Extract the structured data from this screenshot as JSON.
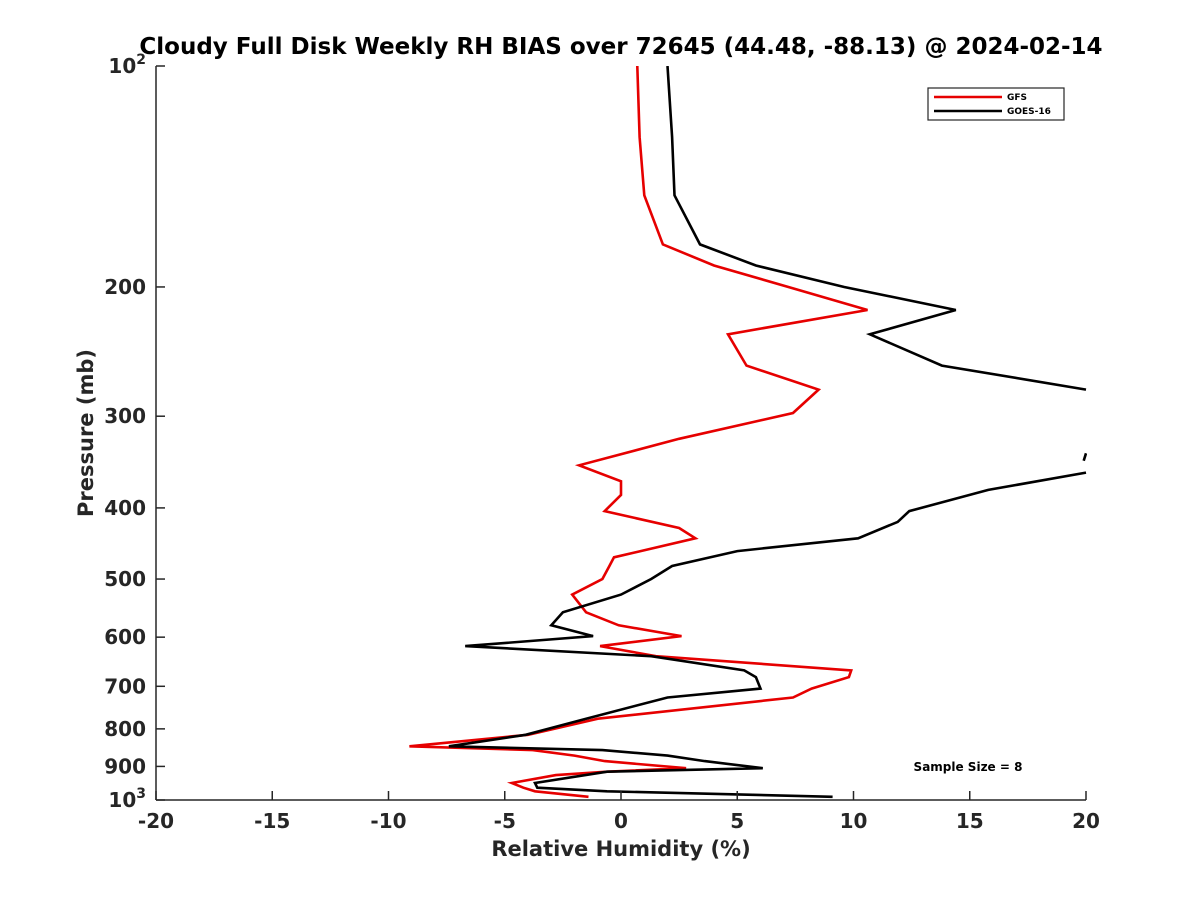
{
  "chart_data": {
    "type": "line",
    "title": "Cloudy Full Disk Weekly RH BIAS over 72645 (44.48, -88.13) @ 2024-02-14",
    "xlabel": "Relative Humidity (%)",
    "ylabel": "Pressure (mb)",
    "xlim": [
      -20,
      20
    ],
    "ylim": [
      100,
      1000
    ],
    "y_scale": "log",
    "y_reversed": true,
    "grid": false,
    "legend_position": "top-right",
    "x_ticks": [
      "-20",
      "-15",
      "-10",
      "-5",
      "0",
      "5",
      "10",
      "15",
      "20"
    ],
    "y_ticks": [
      {
        "value": 100,
        "base": "10",
        "exp": "2"
      },
      {
        "value": 200,
        "label": "200"
      },
      {
        "value": 300,
        "label": "300"
      },
      {
        "value": 400,
        "label": "400"
      },
      {
        "value": 500,
        "label": "500"
      },
      {
        "value": 600,
        "label": "600"
      },
      {
        "value": 700,
        "label": "700"
      },
      {
        "value": 800,
        "label": "800"
      },
      {
        "value": 900,
        "label": "900"
      },
      {
        "value": 1000,
        "base": "10",
        "exp": "3"
      }
    ],
    "annotation": "Sample Size = 8",
    "series": [
      {
        "name": "GFS",
        "color": "#e60000",
        "points": [
          [
            0.7,
            100
          ],
          [
            0.8,
            125
          ],
          [
            1.0,
            150
          ],
          [
            1.8,
            175
          ],
          [
            4.0,
            187
          ],
          [
            7.2,
            200
          ],
          [
            10.6,
            215
          ],
          [
            4.6,
            232
          ],
          [
            5.4,
            256
          ],
          [
            8.5,
            276
          ],
          [
            7.4,
            297
          ],
          [
            2.5,
            322
          ],
          [
            -1.8,
            350
          ],
          [
            0.0,
            368
          ],
          [
            0.0,
            384
          ],
          [
            -0.7,
            404
          ],
          [
            2.5,
            426
          ],
          [
            3.2,
            440
          ],
          [
            -0.3,
            467
          ],
          [
            -0.5,
            480
          ],
          [
            -0.8,
            500
          ],
          [
            -2.1,
            525
          ],
          [
            -1.5,
            555
          ],
          [
            -0.1,
            578
          ],
          [
            2.6,
            598
          ],
          [
            -0.9,
            617
          ],
          [
            1.5,
            637
          ],
          [
            9.9,
            666
          ],
          [
            9.8,
            680
          ],
          [
            8.2,
            705
          ],
          [
            7.4,
            725
          ],
          [
            -1.0,
            775
          ],
          [
            -4.0,
            815
          ],
          [
            -9.1,
            845
          ],
          [
            -3.8,
            855
          ],
          [
            -2.0,
            870
          ],
          [
            -0.7,
            885
          ],
          [
            2.8,
            905
          ],
          [
            -0.6,
            915
          ],
          [
            -2.8,
            925
          ],
          [
            -4.7,
            948
          ],
          [
            -4.2,
            962
          ],
          [
            -3.7,
            973
          ],
          [
            -1.4,
            990
          ]
        ]
      },
      {
        "name": "GOES-16",
        "color": "#000000",
        "points": [
          [
            2.0,
            100
          ],
          [
            2.2,
            125
          ],
          [
            2.3,
            150
          ],
          [
            3.4,
            175
          ],
          [
            5.8,
            187
          ],
          [
            9.6,
            200
          ],
          [
            14.4,
            215
          ],
          [
            10.7,
            232
          ],
          [
            13.8,
            256
          ],
          [
            20.0,
            276
          ],
          [
            null,
            296
          ],
          [
            19.9,
            345
          ],
          [
            20.0,
            337
          ],
          [
            null,
            334
          ],
          [
            20.0,
            358
          ],
          [
            15.8,
            378
          ],
          [
            12.4,
            404
          ],
          [
            11.9,
            418
          ],
          [
            10.2,
            440
          ],
          [
            5.0,
            458
          ],
          [
            2.2,
            480
          ],
          [
            1.3,
            500
          ],
          [
            0.0,
            525
          ],
          [
            -2.5,
            555
          ],
          [
            -3.0,
            578
          ],
          [
            -1.2,
            598
          ],
          [
            -6.7,
            617
          ],
          [
            1.3,
            637
          ],
          [
            5.3,
            666
          ],
          [
            5.8,
            680
          ],
          [
            6.0,
            705
          ],
          [
            2.0,
            725
          ],
          [
            -1.5,
            775
          ],
          [
            -4.1,
            815
          ],
          [
            -7.4,
            845
          ],
          [
            -0.8,
            855
          ],
          [
            2.0,
            870
          ],
          [
            3.6,
            885
          ],
          [
            6.1,
            905
          ],
          [
            -0.6,
            915
          ],
          [
            -3.7,
            948
          ],
          [
            -3.6,
            962
          ],
          [
            -0.6,
            973
          ],
          [
            9.1,
            990
          ]
        ]
      }
    ]
  }
}
